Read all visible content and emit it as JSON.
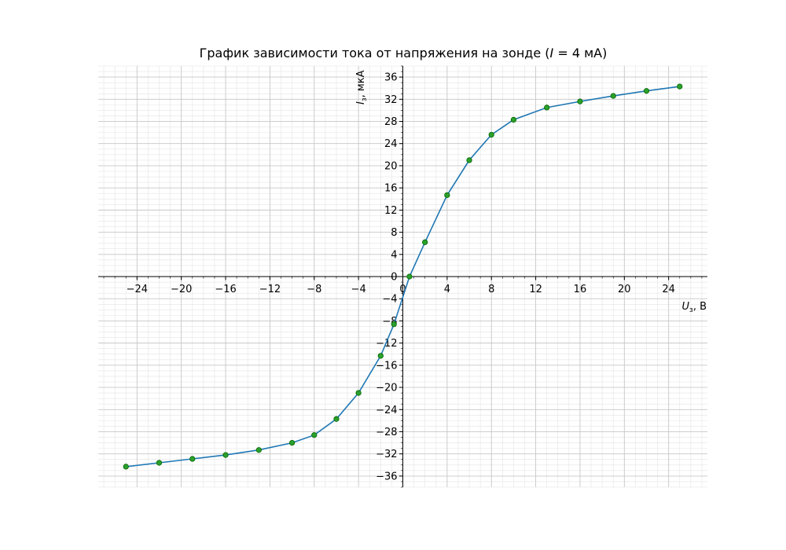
{
  "chart_data": {
    "type": "line",
    "title": {
      "prefix": "График зависимости тока от напряжения на зонде (",
      "var": "I",
      "suffix": " = 4 мА)"
    },
    "xlabel": {
      "var": "U",
      "sub": "з",
      "unit": ", В"
    },
    "ylabel": {
      "var": "I",
      "sub": "з",
      "unit": ", мкА"
    },
    "xlim": [
      -27.5,
      27.5
    ],
    "ylim": [
      -38.0,
      38.0
    ],
    "x_ticks": [
      -24,
      -20,
      -16,
      -12,
      -8,
      -4,
      0,
      4,
      8,
      12,
      16,
      20,
      24
    ],
    "y_ticks": [
      -36,
      -32,
      -28,
      -24,
      -20,
      -16,
      -12,
      -8,
      -4,
      0,
      4,
      8,
      12,
      16,
      20,
      24,
      28,
      32,
      36
    ],
    "x_tick_labels": [
      "−24",
      "−20",
      "−16",
      "−12",
      "−8",
      "−4",
      "0",
      "4",
      "8",
      "12",
      "16",
      "20",
      "24"
    ],
    "y_tick_labels": [
      "−36",
      "−32",
      "−28",
      "−24",
      "−20",
      "−16",
      "−12",
      "−8",
      "−4",
      "0",
      "4",
      "8",
      "12",
      "16",
      "20",
      "24",
      "28",
      "32",
      "36"
    ],
    "grid": true,
    "minor_grid": true,
    "series": [
      {
        "x": [
          -25,
          -22,
          -19,
          -16,
          -13,
          -10,
          -8,
          -6,
          -4,
          -2,
          -0.8,
          0.6,
          2,
          4,
          6,
          8,
          10,
          13,
          16,
          19,
          22,
          25
        ],
        "y": [
          -34.3,
          -33.6,
          -32.9,
          -32.2,
          -31.3,
          -30.0,
          -28.6,
          -25.7,
          -21.0,
          -14.3,
          -8.6,
          0.0,
          6.2,
          14.7,
          21.0,
          25.6,
          28.3,
          30.5,
          31.6,
          32.6,
          33.5,
          34.3
        ],
        "color": "#1f77b4",
        "marker_color": "#2ca02c",
        "marker_edge": "#006400"
      }
    ]
  }
}
